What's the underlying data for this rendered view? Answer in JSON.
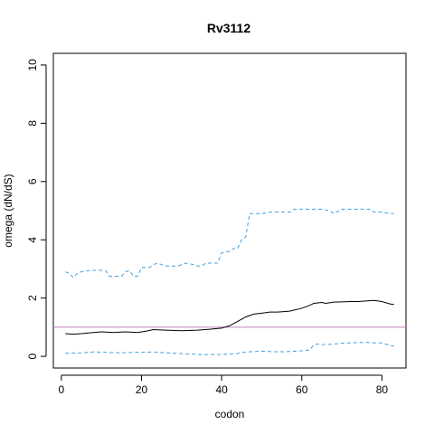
{
  "chart_data": {
    "type": "line",
    "title": "Rv3112",
    "xlabel": "codon",
    "ylabel": "omega (dN/dS)",
    "xlim": [
      -2,
      86
    ],
    "ylim": [
      -0.4,
      10.4
    ],
    "x_ticks": [
      0,
      20,
      40,
      60,
      80
    ],
    "y_ticks": [
      0,
      2,
      4,
      6,
      8,
      10
    ],
    "grid": false,
    "reference_line": {
      "y": 1,
      "color": "#c080c0"
    },
    "series": [
      {
        "role": "estimate",
        "color": "#000000",
        "dash": "solid",
        "points": [
          [
            1,
            0.78
          ],
          [
            3,
            0.76
          ],
          [
            5,
            0.78
          ],
          [
            8,
            0.82
          ],
          [
            10,
            0.84
          ],
          [
            13,
            0.82
          ],
          [
            16,
            0.84
          ],
          [
            19,
            0.82
          ],
          [
            21,
            0.86
          ],
          [
            23,
            0.92
          ],
          [
            26,
            0.9
          ],
          [
            30,
            0.88
          ],
          [
            34,
            0.9
          ],
          [
            37,
            0.93
          ],
          [
            40,
            0.97
          ],
          [
            42,
            1.05
          ],
          [
            44,
            1.2
          ],
          [
            46,
            1.35
          ],
          [
            48,
            1.45
          ],
          [
            50,
            1.48
          ],
          [
            52,
            1.52
          ],
          [
            54,
            1.52
          ],
          [
            57,
            1.55
          ],
          [
            60,
            1.65
          ],
          [
            62,
            1.75
          ],
          [
            63,
            1.82
          ],
          [
            65,
            1.85
          ],
          [
            66,
            1.82
          ],
          [
            68,
            1.86
          ],
          [
            70,
            1.87
          ],
          [
            72,
            1.88
          ],
          [
            74,
            1.88
          ],
          [
            76,
            1.9
          ],
          [
            78,
            1.92
          ],
          [
            80,
            1.88
          ],
          [
            82,
            1.8
          ],
          [
            83,
            1.78
          ]
        ]
      },
      {
        "role": "upper-bound",
        "color": "#40a0e0",
        "dash": "dashed",
        "points": [
          [
            1,
            2.9
          ],
          [
            2,
            2.85
          ],
          [
            3,
            2.7
          ],
          [
            4,
            2.85
          ],
          [
            5,
            2.9
          ],
          [
            7,
            2.95
          ],
          [
            9,
            2.95
          ],
          [
            11,
            2.95
          ],
          [
            12,
            2.75
          ],
          [
            14,
            2.75
          ],
          [
            15,
            2.75
          ],
          [
            16,
            2.9
          ],
          [
            17,
            2.95
          ],
          [
            18,
            2.75
          ],
          [
            19,
            2.75
          ],
          [
            20,
            3.05
          ],
          [
            22,
            3.05
          ],
          [
            23,
            3.15
          ],
          [
            24,
            3.2
          ],
          [
            26,
            3.1
          ],
          [
            29,
            3.1
          ],
          [
            31,
            3.2
          ],
          [
            33,
            3.15
          ],
          [
            34,
            3.1
          ],
          [
            35,
            3.1
          ],
          [
            36,
            3.2
          ],
          [
            39,
            3.2
          ],
          [
            40,
            3.55
          ],
          [
            42,
            3.6
          ],
          [
            43,
            3.7
          ],
          [
            44,
            3.7
          ],
          [
            45,
            4.0
          ],
          [
            46,
            4.1
          ],
          [
            47,
            4.9
          ],
          [
            50,
            4.9
          ],
          [
            52,
            4.95
          ],
          [
            54,
            4.95
          ],
          [
            57,
            4.95
          ],
          [
            58,
            5.05
          ],
          [
            60,
            5.05
          ],
          [
            62,
            5.05
          ],
          [
            65,
            5.05
          ],
          [
            67,
            5.0
          ],
          [
            68,
            4.9
          ],
          [
            70,
            5.05
          ],
          [
            72,
            5.05
          ],
          [
            75,
            5.05
          ],
          [
            77,
            5.05
          ],
          [
            78,
            4.95
          ],
          [
            80,
            4.95
          ],
          [
            82,
            4.9
          ],
          [
            83,
            4.9
          ]
        ]
      },
      {
        "role": "lower-bound",
        "color": "#40a0e0",
        "dash": "dashed",
        "points": [
          [
            1,
            0.1
          ],
          [
            5,
            0.12
          ],
          [
            8,
            0.15
          ],
          [
            11,
            0.14
          ],
          [
            14,
            0.12
          ],
          [
            17,
            0.13
          ],
          [
            20,
            0.14
          ],
          [
            23,
            0.15
          ],
          [
            26,
            0.12
          ],
          [
            29,
            0.1
          ],
          [
            32,
            0.08
          ],
          [
            35,
            0.06
          ],
          [
            38,
            0.06
          ],
          [
            41,
            0.07
          ],
          [
            44,
            0.1
          ],
          [
            46,
            0.15
          ],
          [
            50,
            0.18
          ],
          [
            53,
            0.16
          ],
          [
            56,
            0.16
          ],
          [
            59,
            0.18
          ],
          [
            61,
            0.2
          ],
          [
            62,
            0.22
          ],
          [
            63,
            0.4
          ],
          [
            64,
            0.42
          ],
          [
            66,
            0.4
          ],
          [
            68,
            0.42
          ],
          [
            70,
            0.45
          ],
          [
            73,
            0.47
          ],
          [
            76,
            0.48
          ],
          [
            78,
            0.46
          ],
          [
            80,
            0.46
          ],
          [
            82,
            0.38
          ],
          [
            83,
            0.35
          ]
        ]
      }
    ]
  }
}
